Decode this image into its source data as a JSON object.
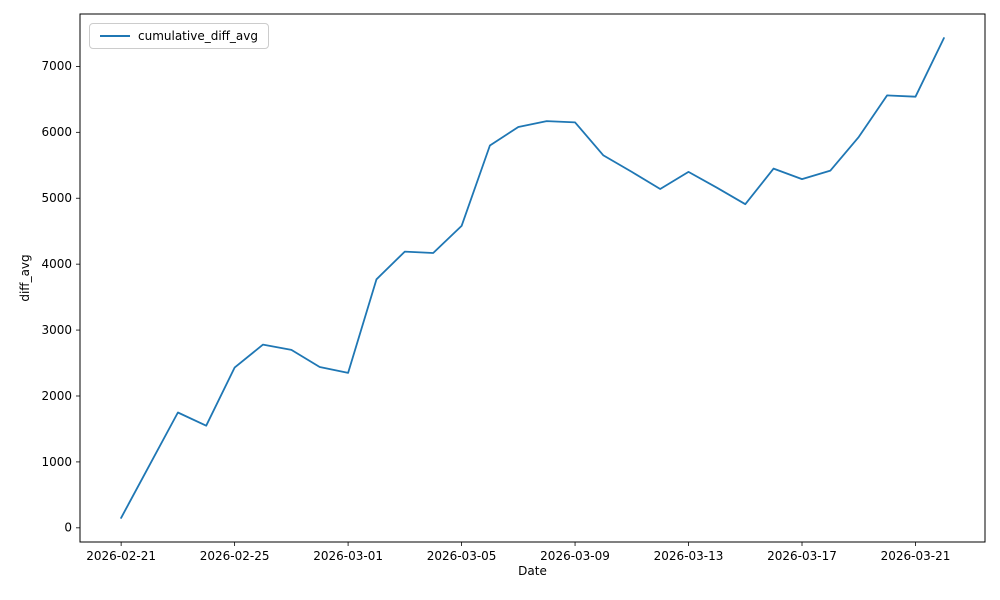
{
  "chart_data": {
    "type": "line",
    "title": "",
    "xlabel": "Date",
    "ylabel": "diff_avg",
    "grid": false,
    "legend": {
      "position": "upper left",
      "label": "cumulative_diff_avg"
    },
    "x": [
      "2026-02-21",
      "2026-02-22",
      "2026-02-23",
      "2026-02-24",
      "2026-02-25",
      "2026-02-26",
      "2026-02-27",
      "2026-02-28",
      "2026-03-01",
      "2026-03-02",
      "2026-03-03",
      "2026-03-04",
      "2026-03-05",
      "2026-03-06",
      "2026-03-07",
      "2026-03-08",
      "2026-03-09",
      "2026-03-10",
      "2026-03-11",
      "2026-03-12",
      "2026-03-13",
      "2026-03-14",
      "2026-03-15",
      "2026-03-16",
      "2026-03-17",
      "2026-03-18",
      "2026-03-19",
      "2026-03-20",
      "2026-03-21",
      "2026-03-22"
    ],
    "series": [
      {
        "name": "cumulative_diff_avg",
        "color": "#1f77b4",
        "values": [
          150,
          950,
          1750,
          1550,
          2430,
          2780,
          2700,
          2440,
          2350,
          3770,
          4190,
          4170,
          4580,
          5800,
          6080,
          6170,
          6150,
          5650,
          5400,
          5140,
          5400,
          5160,
          4910,
          5450,
          5290,
          5420,
          5930,
          6560,
          6540,
          7430
        ]
      }
    ],
    "xtick_labels": [
      "2026-02-21",
      "2026-02-25",
      "2026-03-01",
      "2026-03-05",
      "2026-03-09",
      "2026-03-13",
      "2026-03-17",
      "2026-03-21"
    ],
    "yticks": [
      0,
      1000,
      2000,
      3000,
      4000,
      5000,
      6000,
      7000
    ],
    "xlim_day_index": [
      -1.45,
      30.45
    ],
    "ylim": [
      -215,
      7795
    ]
  }
}
